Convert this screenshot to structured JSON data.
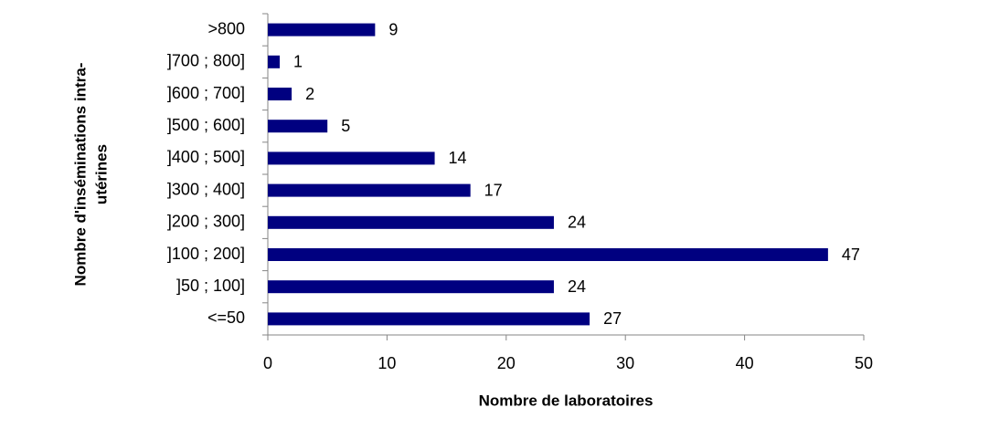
{
  "chart_data": {
    "type": "barh",
    "x_label": "Nombre de laboratoires",
    "y_label": [
      "Nombre d'inséminations intra-",
      "utérines"
    ],
    "categories": [
      "<=50",
      "]50 ; 100]",
      "]100 ; 200]",
      "]200 ; 300]",
      "]300 ; 400]",
      "]400 ; 500]",
      "]500 ; 600]",
      "]600 ; 700]",
      "]700 ; 800]",
      ">800"
    ],
    "values": [
      27,
      24,
      47,
      24,
      17,
      14,
      5,
      2,
      1,
      9
    ],
    "color": "#000080",
    "xlim": [
      0,
      50
    ],
    "xticks": [
      0,
      10,
      20,
      30,
      40,
      50
    ],
    "grid": false
  }
}
